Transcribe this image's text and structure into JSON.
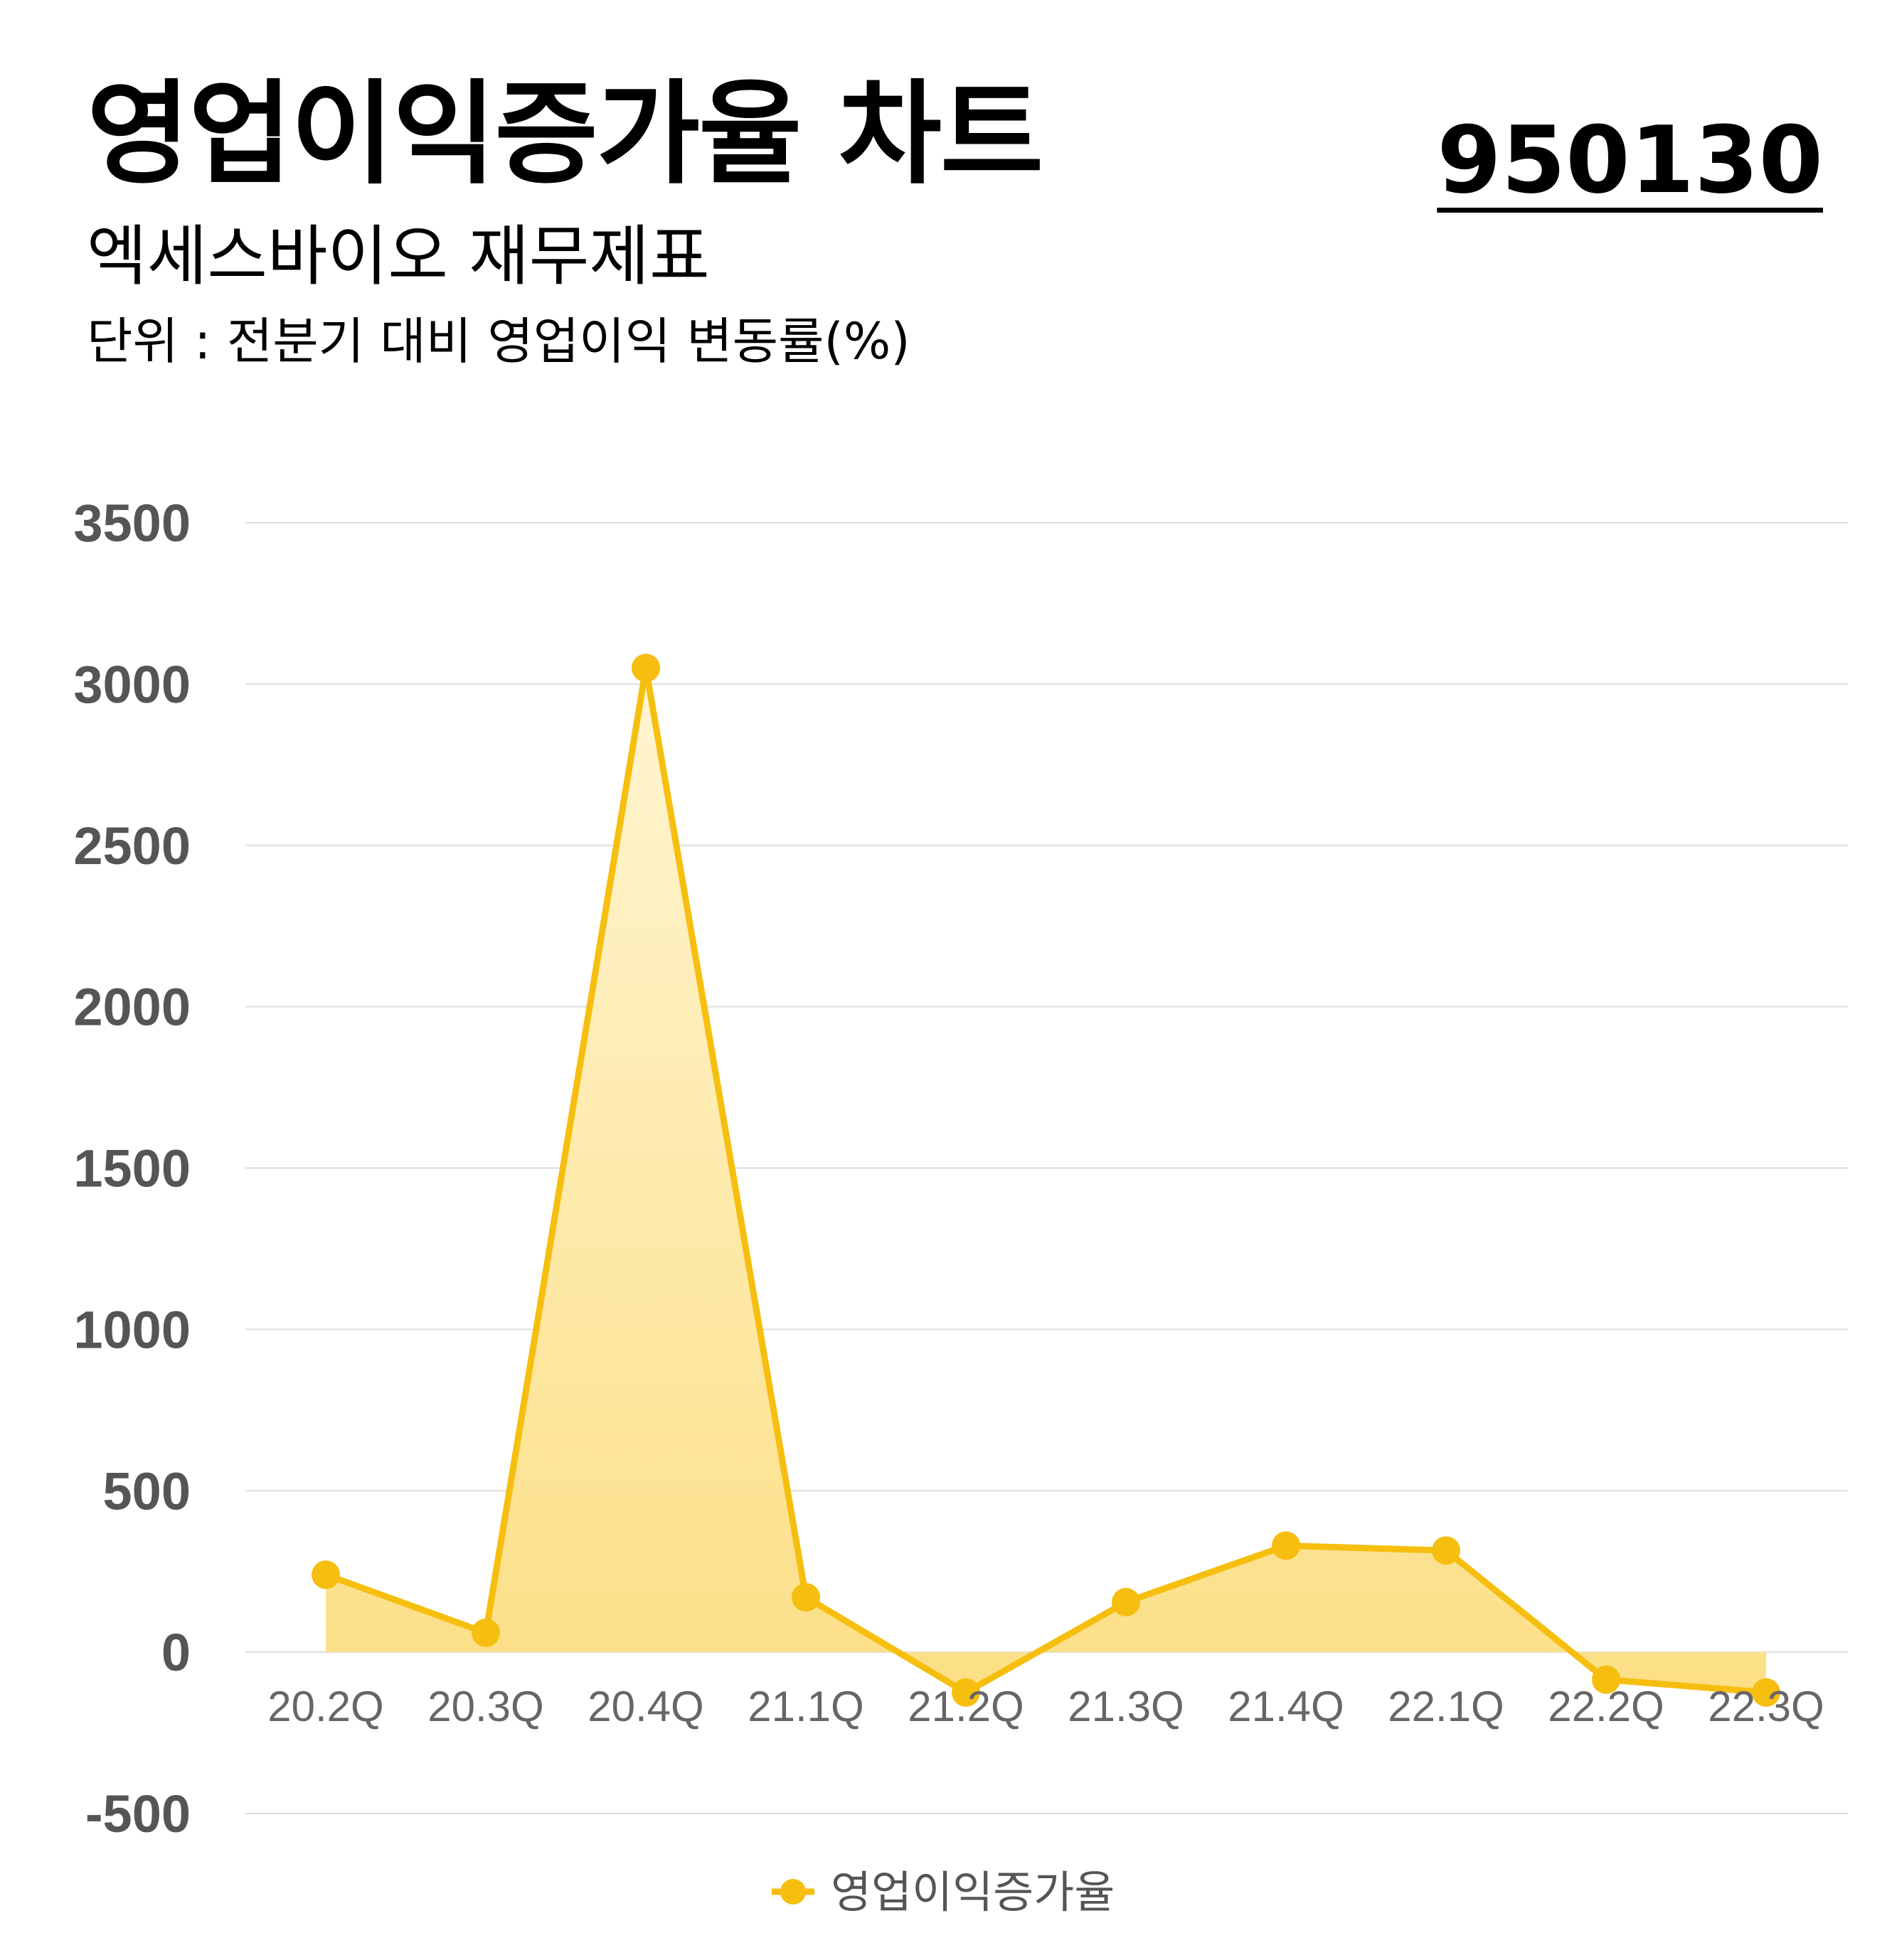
{
  "header": {
    "title": "영업이익증가율 차트",
    "code": "950130",
    "subtitle": "엑세스바이오 재무제표",
    "unit": "단위 : 전분기 대비 영업이익 변동률(%)"
  },
  "colors": {
    "line": "#F6BE0E",
    "fill_top": "#FFF5D2",
    "fill_bottom": "#FCDF86",
    "grid": "#DDDDDD"
  },
  "chart_data": {
    "type": "area",
    "categories": [
      "20.2Q",
      "20.3Q",
      "20.4Q",
      "21.1Q",
      "21.2Q",
      "21.3Q",
      "21.4Q",
      "22.1Q",
      "22.2Q",
      "22.3Q"
    ],
    "series": [
      {
        "name": "영업이익증가율",
        "values": [
          240,
          60,
          3050,
          170,
          -125,
          155,
          330,
          315,
          -85,
          -125
        ]
      }
    ],
    "ylim": [
      -500,
      3500
    ],
    "yticks": [
      "3500",
      "3000",
      "2500",
      "2000",
      "1500",
      "1000",
      "500",
      "0",
      "-500"
    ],
    "grid": true,
    "legend": "bottom-center"
  }
}
